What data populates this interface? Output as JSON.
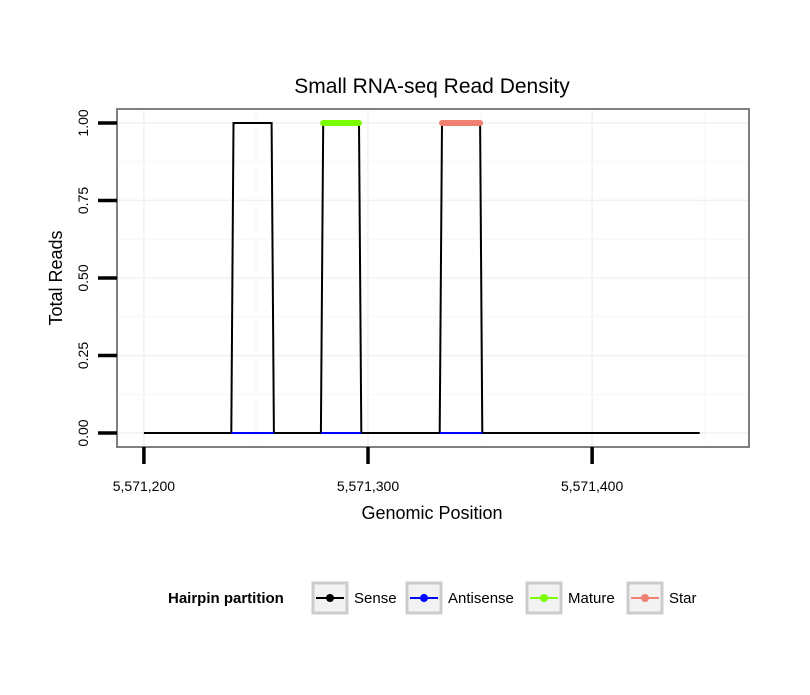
{
  "chart_data": {
    "type": "line",
    "title": "Small RNA-seq Read Density",
    "xlabel": "Genomic Position",
    "ylabel": "Total Reads",
    "xlim": [
      5571188,
      5571470
    ],
    "ylim": [
      -0.045,
      1.045
    ],
    "xticks": [
      5571200,
      5571300,
      5571400
    ],
    "xtick_labels": [
      "5,571,200",
      "5,571,300",
      "5,571,400"
    ],
    "yticks": [
      0,
      0.25,
      0.5,
      0.75,
      1
    ],
    "ytick_labels": [
      "0.00",
      "0.25",
      "0.50",
      "0.75",
      "1.00"
    ],
    "grid": true,
    "series": [
      {
        "name": "Sense",
        "color": "#000000",
        "width": 2,
        "x": [
          5571200,
          5571239,
          5571240,
          5571257,
          5571258,
          5571279,
          5571280,
          5571296,
          5571297,
          5571332,
          5571333,
          5571350,
          5571351,
          5571448
        ],
        "y": [
          0,
          0,
          1,
          1,
          0,
          0,
          1,
          1,
          0,
          0,
          1,
          1,
          0,
          0
        ]
      },
      {
        "name": "Antisense",
        "color": "#0000ff",
        "width": 2,
        "x": [
          5571239,
          5571258,
          5571279,
          5571297,
          5571332,
          5571351
        ],
        "y": [
          0,
          0,
          0,
          0,
          0,
          0
        ],
        "segments": [
          [
            0,
            1
          ],
          [
            2,
            3
          ],
          [
            4,
            5
          ]
        ]
      },
      {
        "name": "Mature",
        "color": "#7cfc00",
        "width": 6,
        "x": [
          5571280,
          5571296
        ],
        "y": [
          1,
          1
        ]
      },
      {
        "name": "Star",
        "color": "#f08070",
        "width": 6,
        "x": [
          5571333,
          5571350
        ],
        "y": [
          1,
          1
        ]
      }
    ],
    "legend": {
      "title": "Hairpin partition",
      "position": "bottom",
      "entries": [
        "Sense",
        "Antisense",
        "Mature",
        "Star"
      ]
    }
  }
}
